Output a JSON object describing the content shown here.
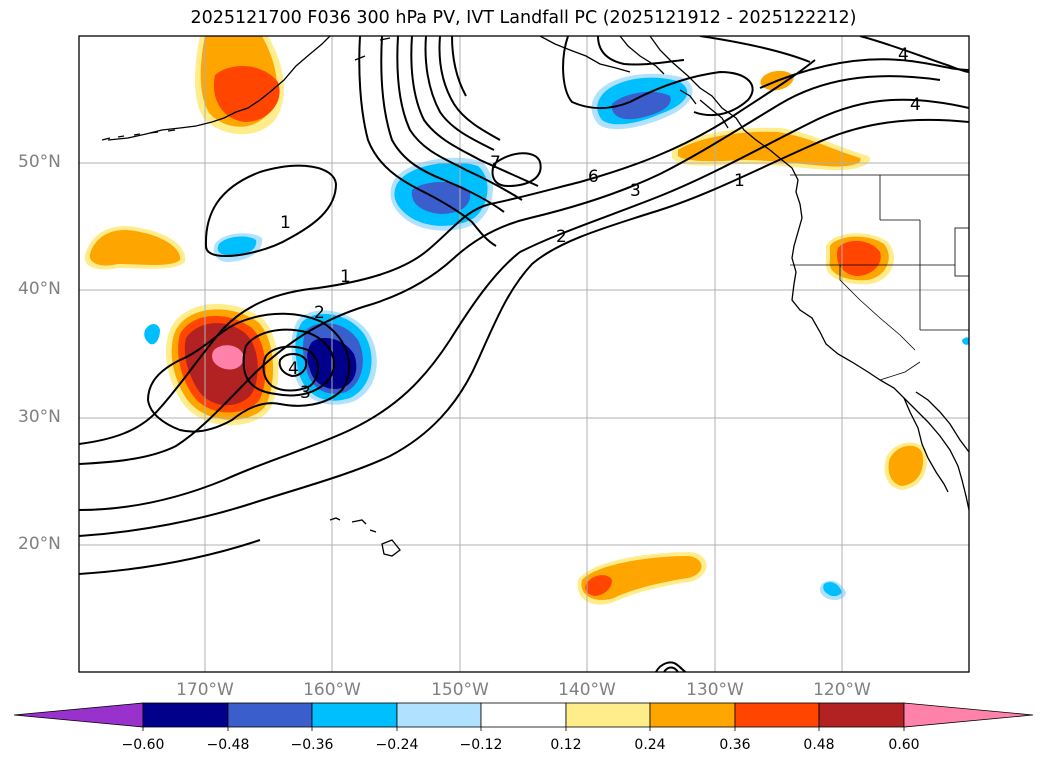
{
  "title": "2025121700 F036 300 hPa PV, IVT Landfall PC (2025121912 - 2025122212)",
  "lat_labels": [
    "50°N",
    "40°N",
    "30°N",
    "20°N"
  ],
  "lon_labels": [
    "170°W",
    "160°W",
    "150°W",
    "140°W",
    "130°W",
    "120°W"
  ],
  "contour_labels": [
    "1",
    "1",
    "1",
    "2",
    "2",
    "3",
    "3",
    "4",
    "4",
    "4",
    "6",
    "7"
  ],
  "colorbar": {
    "tick_labels": [
      "−0.60",
      "−0.48",
      "−0.36",
      "−0.24",
      "−0.12",
      "0.12",
      "0.24",
      "0.36",
      "0.48",
      "0.60"
    ],
    "colors": [
      "#9932cc",
      "#00008b",
      "#3a5fcd",
      "#00bfff",
      "#b0e2ff",
      "#ffffff",
      "#ffec8b",
      "#ffa500",
      "#ff4500",
      "#b22222",
      "#ff82ab"
    ]
  },
  "palette": {
    "grid": "#b0b0b0",
    "contour": "#000000",
    "coast": "#000000"
  }
}
